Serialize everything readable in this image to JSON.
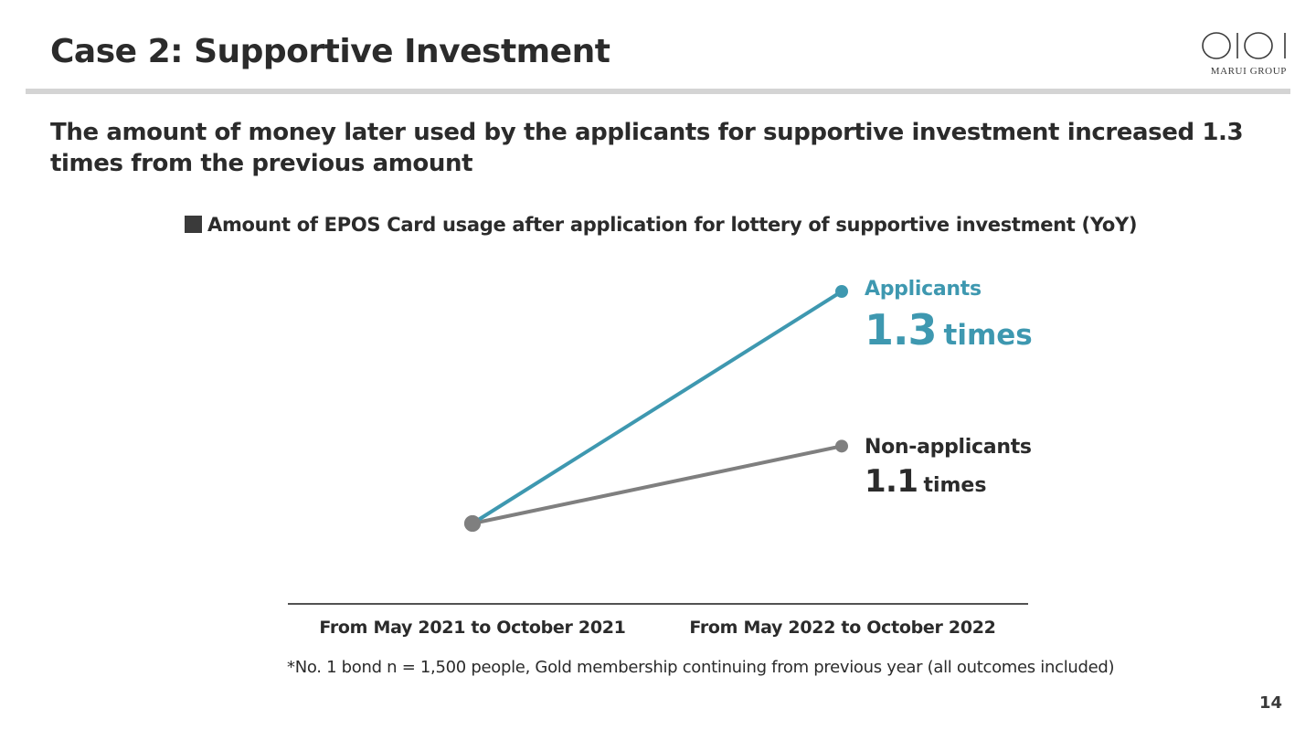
{
  "slide": {
    "title": "Case 2: Supportive Investment",
    "headline": "The amount of money later used by the applicants for supportive investment increased 1.3 times from the previous amount",
    "page_number": "14",
    "footnote": "*No. 1 bond n = 1,500 people, Gold membership continuing from previous year (all outcomes included)"
  },
  "logo": {
    "brand_text": "MARUI GROUP",
    "icon": "oioi-logo-icon"
  },
  "chart_data": {
    "type": "line",
    "title": "Amount of EPOS Card usage after application for lottery of supportive investment (YoY)",
    "categories": [
      "From May 2021 to October 2021",
      "From May 2022 to October 2022"
    ],
    "series": [
      {
        "name": "Applicants",
        "values": [
          1.0,
          1.3
        ],
        "end_label": "1.3",
        "unit": "times",
        "color": "#3e98b0"
      },
      {
        "name": "Non-applicants",
        "values": [
          1.0,
          1.1
        ],
        "end_label": "1.1",
        "unit": "times",
        "color": "#7f7f7f"
      }
    ],
    "xlabel": "",
    "ylabel": "",
    "ylim": [
      1.0,
      1.3
    ],
    "grid": false,
    "legend": "none"
  },
  "colors": {
    "accent": "#3e98b0",
    "secondary": "#7f7f7f",
    "text": "#2b2b2b",
    "rule": "#d4d4d4"
  }
}
